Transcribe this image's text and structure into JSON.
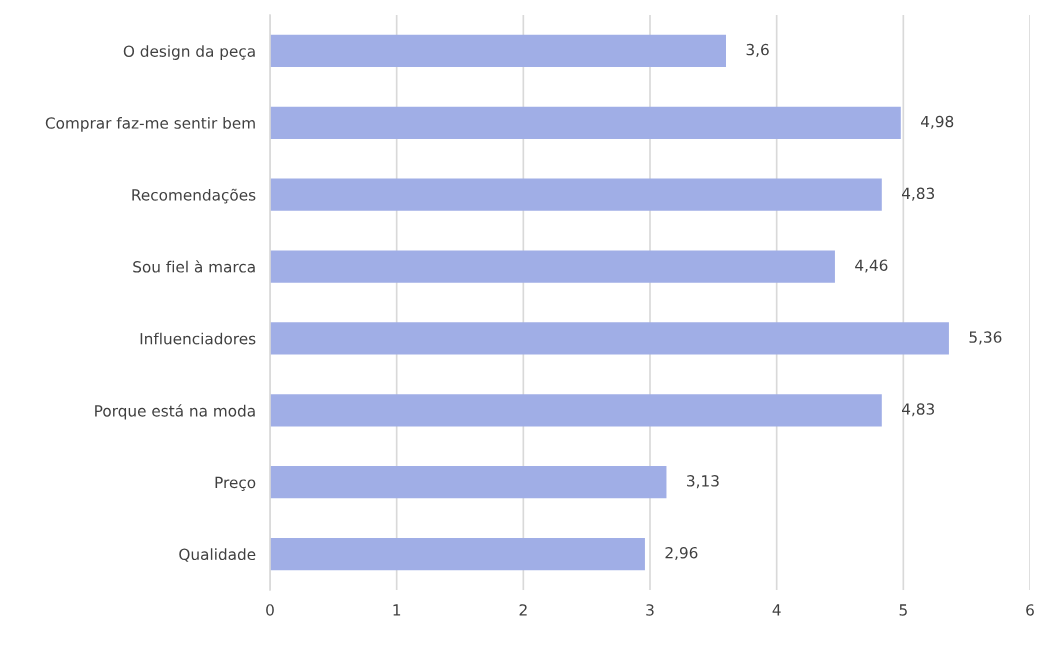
{
  "chart_data": {
    "type": "bar",
    "orientation": "horizontal",
    "categories": [
      "O design da peça",
      "Comprar faz-me sentir bem",
      "Recomendações",
      "Sou fiel à marca",
      "Influenciadores",
      "Porque está na moda",
      "Preço",
      "Qualidade"
    ],
    "values": [
      3.6,
      4.98,
      4.83,
      4.46,
      5.36,
      4.83,
      3.13,
      2.96
    ],
    "value_labels": [
      "3,6",
      "4,98",
      "4,83",
      "4,46",
      "5,36",
      "4,83",
      "3,13",
      "2,96"
    ],
    "color": "#a0aee6",
    "xlim": [
      0,
      6
    ],
    "xticks": [
      0,
      1,
      2,
      3,
      4,
      5,
      6
    ],
    "grid": "x",
    "legend": false
  }
}
